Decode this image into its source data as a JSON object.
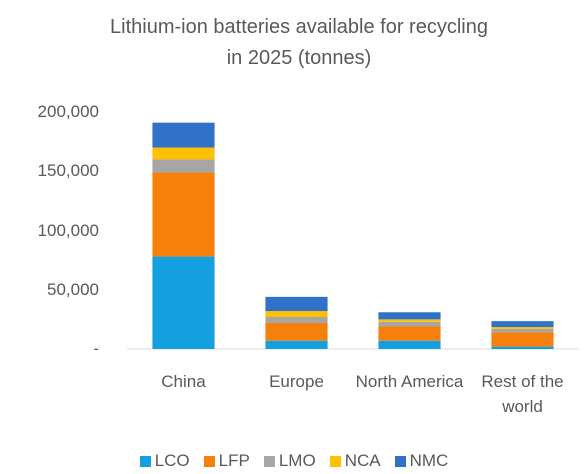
{
  "chart_data": {
    "type": "stacked_bar",
    "title": "Lithium-ion batteries available for recycling in 2025 (tonnes)",
    "categories": [
      "China",
      "Europe",
      "North America",
      "Rest of the world"
    ],
    "series": [
      {
        "name": "LCO",
        "color": "#14a0e0",
        "values": [
          78000,
          7000,
          7000,
          2000
        ]
      },
      {
        "name": "LFP",
        "color": "#f7800a",
        "values": [
          71000,
          15000,
          12000,
          12000
        ]
      },
      {
        "name": "LMO",
        "color": "#a6a6a6",
        "values": [
          11000,
          5000,
          4000,
          3000
        ]
      },
      {
        "name": "NCA",
        "color": "#ffc000",
        "values": [
          10000,
          5000,
          2000,
          1500
        ]
      },
      {
        "name": "NMC",
        "color": "#2f72c8",
        "values": [
          21000,
          12000,
          6000,
          5000
        ]
      }
    ],
    "ylim": [
      0,
      200000
    ],
    "yticks": [
      {
        "value": 0,
        "label": "-"
      },
      {
        "value": 50000,
        "label": "50,000"
      },
      {
        "value": 100000,
        "label": "100,000"
      },
      {
        "value": 150000,
        "label": "150,000"
      },
      {
        "value": 200000,
        "label": "200,000"
      }
    ],
    "grid": false,
    "legend": "bottom"
  }
}
